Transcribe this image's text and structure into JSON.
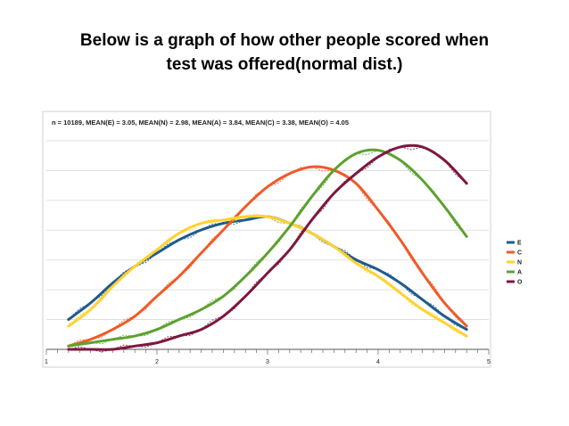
{
  "slide": {
    "title_line1": "Below is a graph of how other people scored when",
    "title_line2": "test was offered(normal dist.)"
  },
  "chart_data": {
    "type": "line",
    "subtitle": "n = 10189, MEAN(E) = 3.05, MEAN(N) = 2.98, MEAN(A) = 3.84, MEAN(C) = 3.38, MEAN(O) = 4.05",
    "xlim": [
      1,
      5
    ],
    "ylim": [
      0,
      0.065
    ],
    "x_ticks": [
      1,
      2,
      3,
      4,
      5
    ],
    "grid": "horizontal",
    "legend_position": "right",
    "series": [
      {
        "name": "E",
        "color": "#1f5b8e",
        "x": [
          1.2,
          1.4,
          1.6,
          1.8,
          2.0,
          2.2,
          2.4,
          2.6,
          2.8,
          3.0,
          3.2,
          3.4,
          3.6,
          3.8,
          4.0,
          4.2,
          4.4,
          4.6,
          4.8
        ],
        "values": [
          0.009,
          0.014,
          0.02,
          0.025,
          0.029,
          0.033,
          0.036,
          0.038,
          0.039,
          0.04,
          0.038,
          0.035,
          0.031,
          0.027,
          0.024,
          0.02,
          0.015,
          0.01,
          0.006
        ]
      },
      {
        "name": "C",
        "color": "#f05a28",
        "x": [
          1.2,
          1.4,
          1.6,
          1.8,
          2.0,
          2.2,
          2.4,
          2.6,
          2.8,
          3.0,
          3.2,
          3.4,
          3.6,
          3.8,
          4.0,
          4.2,
          4.4,
          4.6,
          4.8
        ],
        "values": [
          0.001,
          0.003,
          0.006,
          0.01,
          0.016,
          0.022,
          0.029,
          0.036,
          0.043,
          0.049,
          0.053,
          0.055,
          0.054,
          0.05,
          0.042,
          0.033,
          0.023,
          0.014,
          0.007
        ]
      },
      {
        "name": "N",
        "color": "#ffd230",
        "x": [
          1.2,
          1.4,
          1.6,
          1.8,
          2.0,
          2.2,
          2.4,
          2.6,
          2.8,
          3.0,
          3.2,
          3.4,
          3.6,
          3.8,
          4.0,
          4.2,
          4.4,
          4.6,
          4.8
        ],
        "values": [
          0.007,
          0.012,
          0.019,
          0.025,
          0.03,
          0.035,
          0.038,
          0.039,
          0.04,
          0.04,
          0.038,
          0.035,
          0.031,
          0.026,
          0.022,
          0.017,
          0.012,
          0.008,
          0.004
        ]
      },
      {
        "name": "A",
        "color": "#5ca22e",
        "x": [
          1.2,
          1.4,
          1.6,
          1.8,
          2.0,
          2.2,
          2.4,
          2.6,
          2.8,
          3.0,
          3.2,
          3.4,
          3.6,
          3.8,
          4.0,
          4.2,
          4.4,
          4.6,
          4.8
        ],
        "values": [
          0.001,
          0.002,
          0.003,
          0.004,
          0.006,
          0.009,
          0.012,
          0.016,
          0.022,
          0.029,
          0.037,
          0.046,
          0.054,
          0.059,
          0.06,
          0.057,
          0.051,
          0.043,
          0.034
        ]
      },
      {
        "name": "O",
        "color": "#7d1740",
        "x": [
          1.2,
          1.4,
          1.6,
          1.8,
          2.0,
          2.2,
          2.4,
          2.6,
          2.8,
          3.0,
          3.2,
          3.4,
          3.6,
          3.8,
          4.0,
          4.2,
          4.4,
          4.6,
          4.8
        ],
        "values": [
          0.0,
          0.0,
          0.0,
          0.001,
          0.002,
          0.004,
          0.006,
          0.01,
          0.016,
          0.023,
          0.03,
          0.039,
          0.047,
          0.053,
          0.058,
          0.061,
          0.061,
          0.057,
          0.05
        ]
      }
    ]
  }
}
